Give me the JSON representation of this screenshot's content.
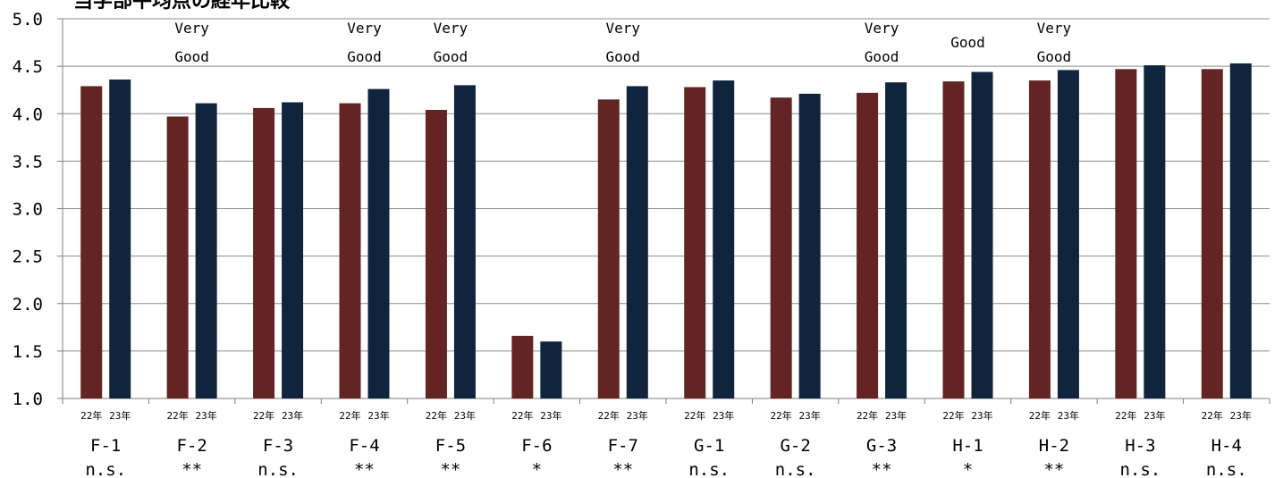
{
  "chart_data": {
    "type": "bar",
    "title": "当学部平均点の経年比較",
    "ylim": [
      1.0,
      5.0
    ],
    "yticks": [
      "1.0",
      "1.5",
      "2.0",
      "2.5",
      "3.0",
      "3.5",
      "4.0",
      "4.5",
      "5.0"
    ],
    "grid": true,
    "year_labels": [
      "22年",
      "23年"
    ],
    "colors": {
      "22年": "#632523",
      "23年": "#10243e"
    },
    "categories": [
      "F-1",
      "F-2",
      "F-3",
      "F-4",
      "F-5",
      "F-6",
      "F-7",
      "G-1",
      "G-2",
      "G-3",
      "H-1",
      "H-2",
      "H-3",
      "H-4"
    ],
    "significance": [
      "n.s.",
      "**",
      "n.s.",
      "**",
      "**",
      "*",
      "**",
      "n.s.",
      "n.s.",
      "**",
      "*",
      "**",
      "n.s.",
      "n.s."
    ],
    "ratings": [
      "",
      "Very Good",
      "",
      "Very Good",
      "Very Good",
      "",
      "Very Good",
      "",
      "",
      "Very Good",
      "Good",
      "Very Good",
      "",
      ""
    ],
    "series": [
      {
        "name": "22年",
        "values": [
          4.29,
          3.97,
          4.06,
          4.11,
          4.04,
          1.66,
          4.15,
          4.28,
          4.17,
          4.22,
          4.34,
          4.35,
          4.47,
          4.47
        ]
      },
      {
        "name": "23年",
        "values": [
          4.36,
          4.11,
          4.12,
          4.26,
          4.3,
          1.6,
          4.29,
          4.35,
          4.21,
          4.33,
          4.44,
          4.46,
          4.51,
          4.53
        ]
      }
    ]
  }
}
